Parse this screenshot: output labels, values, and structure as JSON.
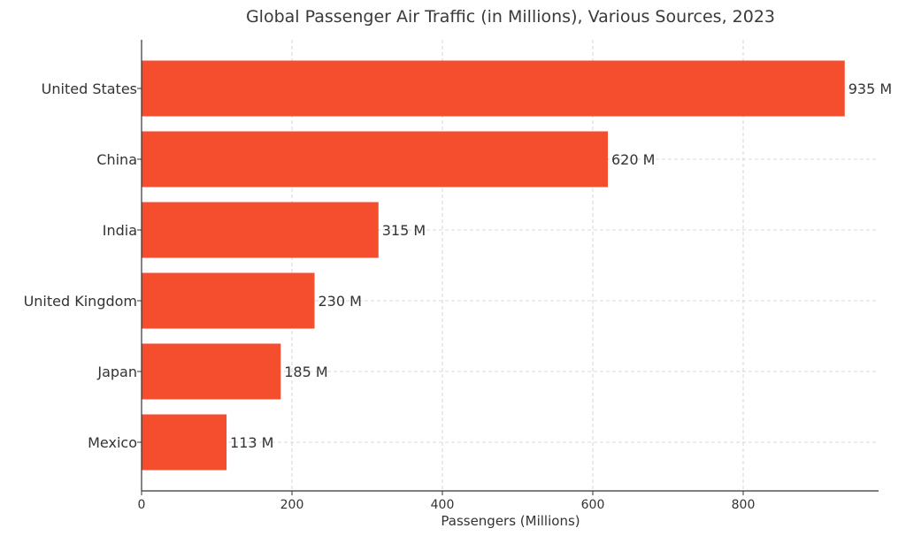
{
  "chart_data": {
    "type": "bar",
    "orientation": "horizontal",
    "title": "Global Passenger Air Traffic (in Millions), Various Sources, 2023",
    "xlabel": "Passengers (Millions)",
    "ylabel": "",
    "categories": [
      "United States",
      "China",
      "India",
      "United Kingdom",
      "Japan",
      "Mexico"
    ],
    "values": [
      935,
      620,
      315,
      230,
      185,
      113
    ],
    "data_labels": [
      "935 M",
      "620 M",
      "315 M",
      "230 M",
      "185 M",
      "113 M"
    ],
    "xlim": [
      0,
      980
    ],
    "x_ticks": [
      0,
      200,
      400,
      600,
      800
    ],
    "x_tick_labels": [
      "0",
      "200",
      "400",
      "600",
      "800"
    ],
    "grid": true,
    "bar_color": "#f44e2e"
  }
}
